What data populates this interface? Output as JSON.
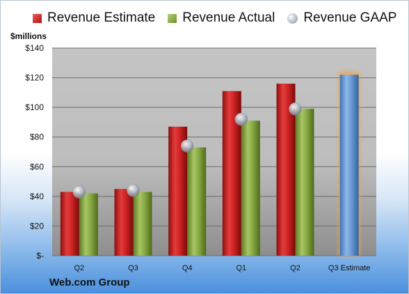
{
  "legend": {
    "estimate": "Revenue Estimate",
    "actual": "Revenue Actual",
    "gaap": "Revenue GAAP"
  },
  "unit_label": "$millions",
  "company": "Web.com Group",
  "chart_data": {
    "type": "bar",
    "categories": [
      "Q2",
      "Q3",
      "Q4",
      "Q1",
      "Q2",
      "Q3 Estimate"
    ],
    "series": [
      {
        "name": "Revenue Estimate",
        "values": [
          43,
          45,
          87,
          111,
          116,
          null
        ],
        "color": "#c81e1e"
      },
      {
        "name": "Revenue Actual",
        "values": [
          42,
          43,
          73,
          91,
          99,
          null
        ],
        "color": "#8aaa45"
      },
      {
        "name": "Revenue GAAP",
        "values": [
          43,
          44,
          74,
          92,
          99,
          null
        ],
        "color": "#a9b3bf",
        "style": "marker"
      },
      {
        "name": "Q3 Estimate",
        "values": [
          null,
          null,
          null,
          null,
          null,
          122
        ],
        "color": "#6a9bd6",
        "style": "highlighted"
      }
    ],
    "yticks": [
      "$-",
      "$20",
      "$40",
      "$60",
      "$80",
      "$100",
      "$120",
      "$140"
    ],
    "ylim": [
      0,
      140
    ],
    "grid": true,
    "legend_position": "top"
  }
}
